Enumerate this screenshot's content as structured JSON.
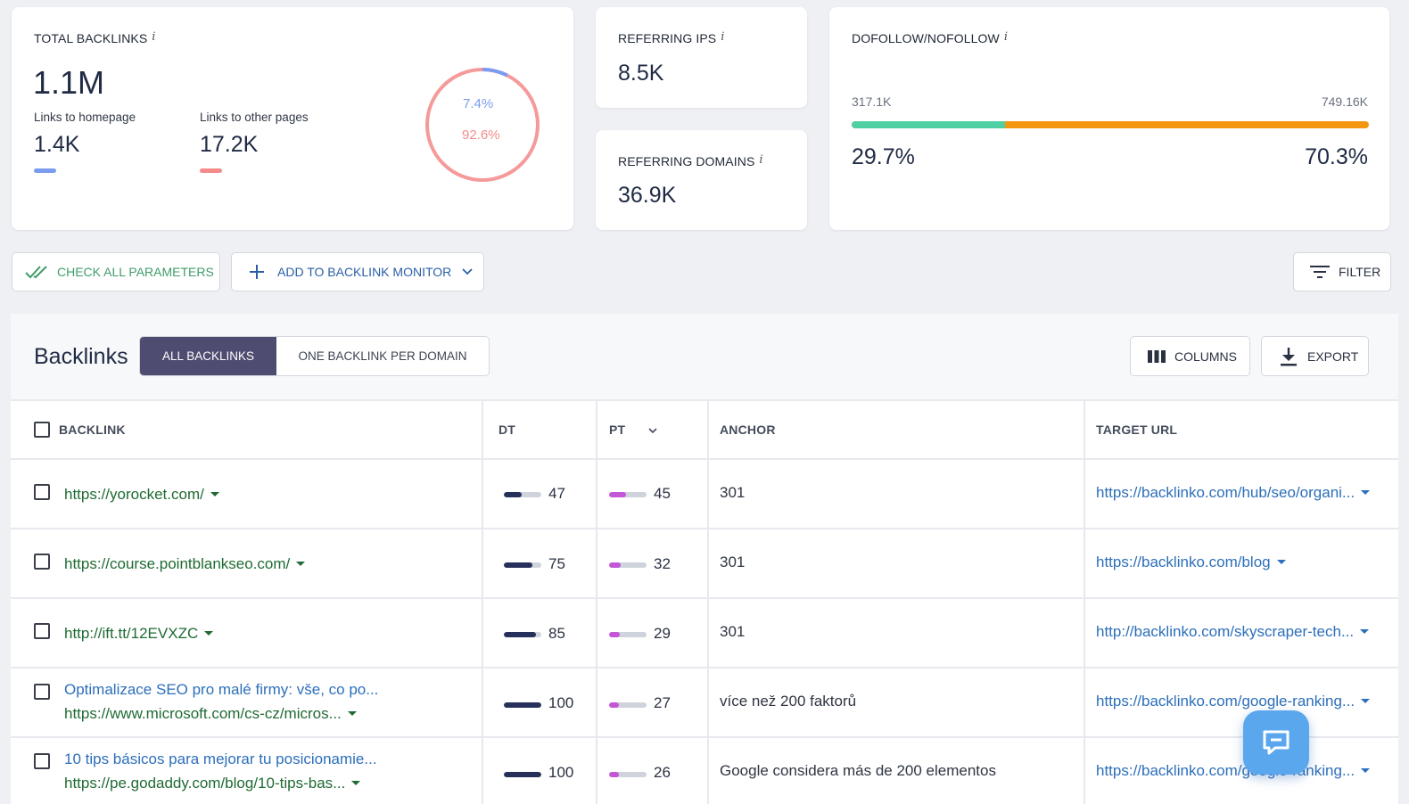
{
  "summary": {
    "total_backlinks": {
      "title": "TOTAL BACKLINKS",
      "info": "i",
      "value": "1.1M",
      "homepage_label": "Links to homepage",
      "homepage_value": "1.4K",
      "other_label": "Links to other pages",
      "other_value": "17.2K",
      "donut": {
        "homepage_pct": "7.4%",
        "other_pct": "92.6%",
        "homepage_fraction": 0.074,
        "other_fraction": 0.926
      }
    },
    "referring_ips": {
      "title": "REFERRING IPS",
      "info": "i",
      "value": "8.5K"
    },
    "referring_domains": {
      "title": "REFERRING DOMAINS",
      "info": "i",
      "value": "36.9K"
    },
    "dofollow": {
      "title": "DOFOLLOW/NOFOLLOW",
      "info": "i",
      "left_count": "317.1K",
      "right_count": "749.16K",
      "left_pct": "29.7%",
      "right_pct": "70.3%",
      "left_fraction": 0.297
    }
  },
  "toolbar": {
    "check_all": "CHECK ALL PARAMETERS",
    "add_monitor": "ADD TO BACKLINK MONITOR",
    "filter": "FILTER"
  },
  "panel": {
    "title": "Backlinks",
    "tabs": [
      "ALL BACKLINKS",
      "ONE BACKLINK PER DOMAIN"
    ],
    "columns_button": "COLUMNS",
    "export_button": "EXPORT"
  },
  "table": {
    "headers": {
      "backlink": "BACKLINK",
      "dt": "DT",
      "pt": "PT",
      "anchor": "ANCHOR",
      "target": "TARGET URL"
    },
    "rows": [
      {
        "title": "",
        "url": "https://yorocket.com/",
        "dt": 47,
        "pt": 45,
        "anchor": "301",
        "target": "https://backlinko.com/hub/seo/organi..."
      },
      {
        "title": "",
        "url": "https://course.pointblankseo.com/",
        "dt": 75,
        "pt": 32,
        "anchor": "301",
        "target": "https://backlinko.com/blog"
      },
      {
        "title": "",
        "url": "http://ift.tt/12EVXZC",
        "dt": 85,
        "pt": 29,
        "anchor": "301",
        "target": "http://backlinko.com/skyscraper-tech..."
      },
      {
        "title": "Optimalizace SEO pro malé firmy: vše, co po...",
        "url": "https://www.microsoft.com/cs-cz/micros...",
        "dt": 100,
        "pt": 27,
        "anchor": "více než 200 faktorů",
        "target": "https://backlinko.com/google-ranking..."
      },
      {
        "title": "10 tips básicos para mejorar tu posicionamie...",
        "url": "https://pe.godaddy.com/blog/10-tips-bas...",
        "dt": 100,
        "pt": 26,
        "anchor": "Google considera más de 200 elementos",
        "target": "https://backlinko.com/google-ranking..."
      }
    ]
  },
  "colors": {
    "homepage": "#7b9cf0",
    "other": "#f38b8b",
    "dofollow": "#4fd0a3",
    "nofollow": "#f5960f",
    "dt_fill": "#27305a",
    "pt_fill": "#c357d8",
    "active_tab": "#4e4c70"
  }
}
